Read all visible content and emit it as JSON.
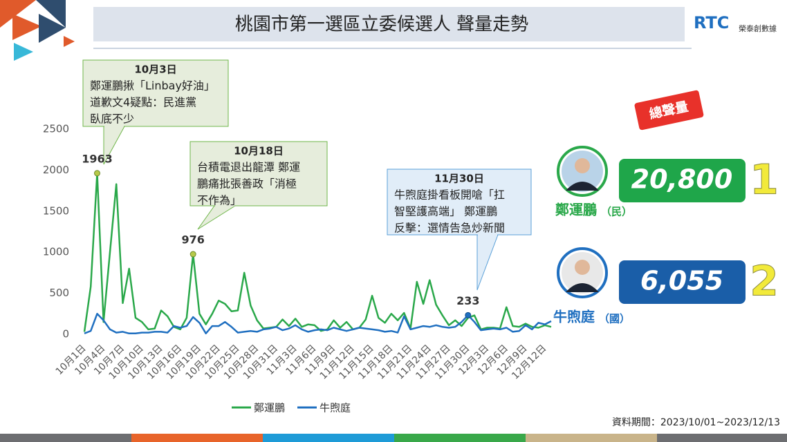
{
  "header": {
    "title": "桃園市第一選區立委候選人  聲量走勢",
    "logo": "RTC",
    "brand": "榮泰創數據"
  },
  "badge": "總聲量",
  "candidates": [
    {
      "party": "（民）",
      "total": "20,800",
      "rank": 1
    },
    {
      "party": "（國）",
      "total": "6,055",
      "rank": 2
    }
  ],
  "annotations": [
    {
      "date": "10月3日",
      "lines": [
        "鄭運鵬揪「Linbay好油」",
        "道歉文4疑點：民進黨",
        "臥底不少"
      ]
    },
    {
      "date": "10月18日",
      "lines": [
        "台積電退出龍潭 鄭運",
        "鵬痛批張善政「消極",
        "不作為」"
      ]
    },
    {
      "date": "11月30日",
      "lines": [
        "牛煦庭掛看板開嗆「扛",
        "智堅護高端」 鄭運鵬",
        "反擊：選情告急炒新聞"
      ]
    }
  ],
  "footer": "資料期間：2023/10/01~2023/12/13",
  "chart_data": {
    "type": "line",
    "categories": [
      "10月1日",
      null,
      null,
      "10月4日",
      null,
      null,
      "10月7日",
      null,
      null,
      "10月10日",
      null,
      null,
      "10月13日",
      null,
      null,
      "10月16日",
      null,
      null,
      "10月19日",
      null,
      null,
      "10月22日",
      null,
      null,
      "10月25日",
      null,
      null,
      "10月28日",
      null,
      null,
      "10月31日",
      null,
      null,
      "11月3日",
      null,
      null,
      "11月6日",
      null,
      null,
      "11月9日",
      null,
      null,
      "11月12日",
      null,
      null,
      "11月15日",
      null,
      null,
      "11月18日",
      null,
      null,
      "11月21日",
      null,
      null,
      "11月24日",
      null,
      null,
      "11月27日",
      null,
      null,
      "11月30日",
      null,
      null,
      "12月3日",
      null,
      null,
      "12月6日",
      null,
      null,
      "12月9日",
      null,
      null,
      "12月12日",
      null
    ],
    "series": [
      {
        "name": "鄭運鵬",
        "color": "#2aa84a",
        "values": [
          30,
          580,
          1963,
          150,
          1000,
          1830,
          380,
          800,
          200,
          150,
          60,
          70,
          290,
          220,
          90,
          60,
          200,
          976,
          250,
          120,
          250,
          410,
          370,
          280,
          290,
          750,
          350,
          170,
          70,
          80,
          90,
          180,
          100,
          190,
          90,
          120,
          110,
          40,
          60,
          170,
          80,
          150,
          60,
          80,
          180,
          470,
          200,
          140,
          250,
          170,
          260,
          70,
          640,
          370,
          660,
          360,
          230,
          110,
          170,
          100,
          200,
          230,
          60,
          80,
          80,
          70,
          330,
          100,
          90,
          130,
          90,
          80,
          110,
          90
        ],
        "value_labels": [
          null,
          null,
          "1963",
          null,
          null,
          null,
          null,
          null,
          null,
          null,
          null,
          null,
          null,
          null,
          null,
          null,
          null,
          "976",
          null,
          null,
          null,
          null,
          null,
          null,
          null,
          null,
          null,
          null,
          null,
          null,
          null,
          null,
          null,
          null,
          null,
          null,
          null,
          null,
          null,
          null,
          null,
          null,
          null,
          null,
          null,
          null,
          null,
          null,
          null,
          null,
          null,
          null,
          null,
          null,
          null,
          null,
          null,
          null,
          null,
          null,
          null,
          null,
          null,
          null,
          null,
          null,
          null,
          null,
          null,
          null,
          null,
          null,
          null,
          null
        ]
      },
      {
        "name": "牛煦庭",
        "color": "#1f6fc0",
        "values": [
          10,
          40,
          250,
          170,
          60,
          20,
          30,
          10,
          10,
          20,
          20,
          30,
          30,
          20,
          100,
          80,
          100,
          210,
          140,
          10,
          100,
          100,
          150,
          90,
          20,
          30,
          40,
          30,
          60,
          70,
          90,
          50,
          70,
          110,
          60,
          30,
          50,
          60,
          50,
          80,
          60,
          40,
          60,
          80,
          70,
          60,
          50,
          30,
          40,
          20,
          220,
          60,
          80,
          100,
          90,
          110,
          90,
          80,
          90,
          150,
          233,
          150,
          50,
          60,
          70,
          60,
          80,
          30,
          40,
          110,
          60,
          140,
          120,
          160
        ],
        "value_labels": [
          null,
          null,
          null,
          null,
          null,
          null,
          null,
          null,
          null,
          null,
          null,
          null,
          null,
          null,
          null,
          null,
          null,
          null,
          null,
          null,
          null,
          null,
          null,
          null,
          null,
          null,
          null,
          null,
          null,
          null,
          null,
          null,
          null,
          null,
          null,
          null,
          null,
          null,
          null,
          null,
          null,
          null,
          null,
          null,
          null,
          null,
          null,
          null,
          null,
          null,
          null,
          null,
          null,
          null,
          null,
          null,
          null,
          null,
          null,
          null,
          "233",
          null,
          null,
          null,
          null,
          null,
          null,
          null,
          null,
          null,
          null,
          null,
          null,
          null
        ]
      }
    ],
    "ylim": [
      0,
      2500
    ],
    "yticks": [
      0,
      500,
      1000,
      1500,
      2000,
      2500
    ],
    "grid": false,
    "legend": "bottom"
  }
}
